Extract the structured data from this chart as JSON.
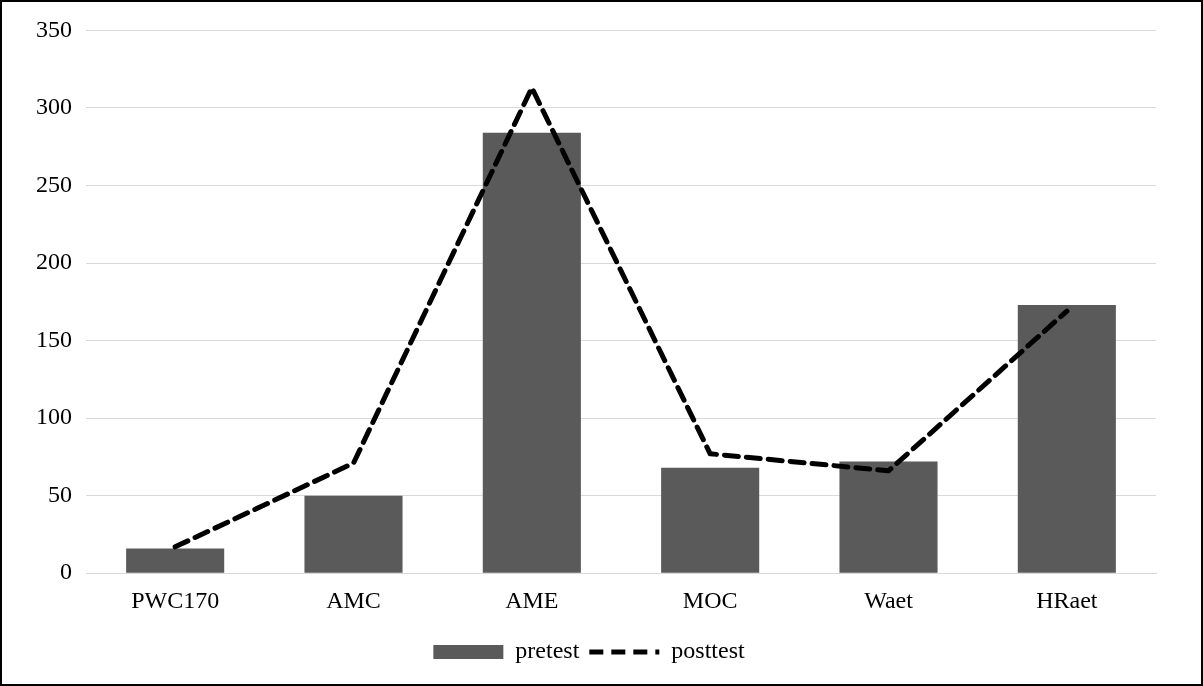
{
  "chart_data": {
    "type": "bar",
    "categories": [
      "PWC170",
      "AMC",
      "AME",
      "MOC",
      "Waet",
      "HRaet"
    ],
    "series": [
      {
        "name": "pretest",
        "color": "#5a5a5a",
        "values": [
          16,
          50,
          284,
          68,
          72,
          173
        ]
      },
      {
        "name": "posttest",
        "type": "line",
        "color": "#000000",
        "line_style": "dashed",
        "marker": "none",
        "values": [
          17,
          71,
          313,
          77,
          66,
          169
        ]
      }
    ],
    "ylim": [
      0,
      350
    ],
    "yticks": [
      0,
      50,
      100,
      150,
      200,
      250,
      300,
      350
    ],
    "grid": "y",
    "legend": "bottom"
  }
}
